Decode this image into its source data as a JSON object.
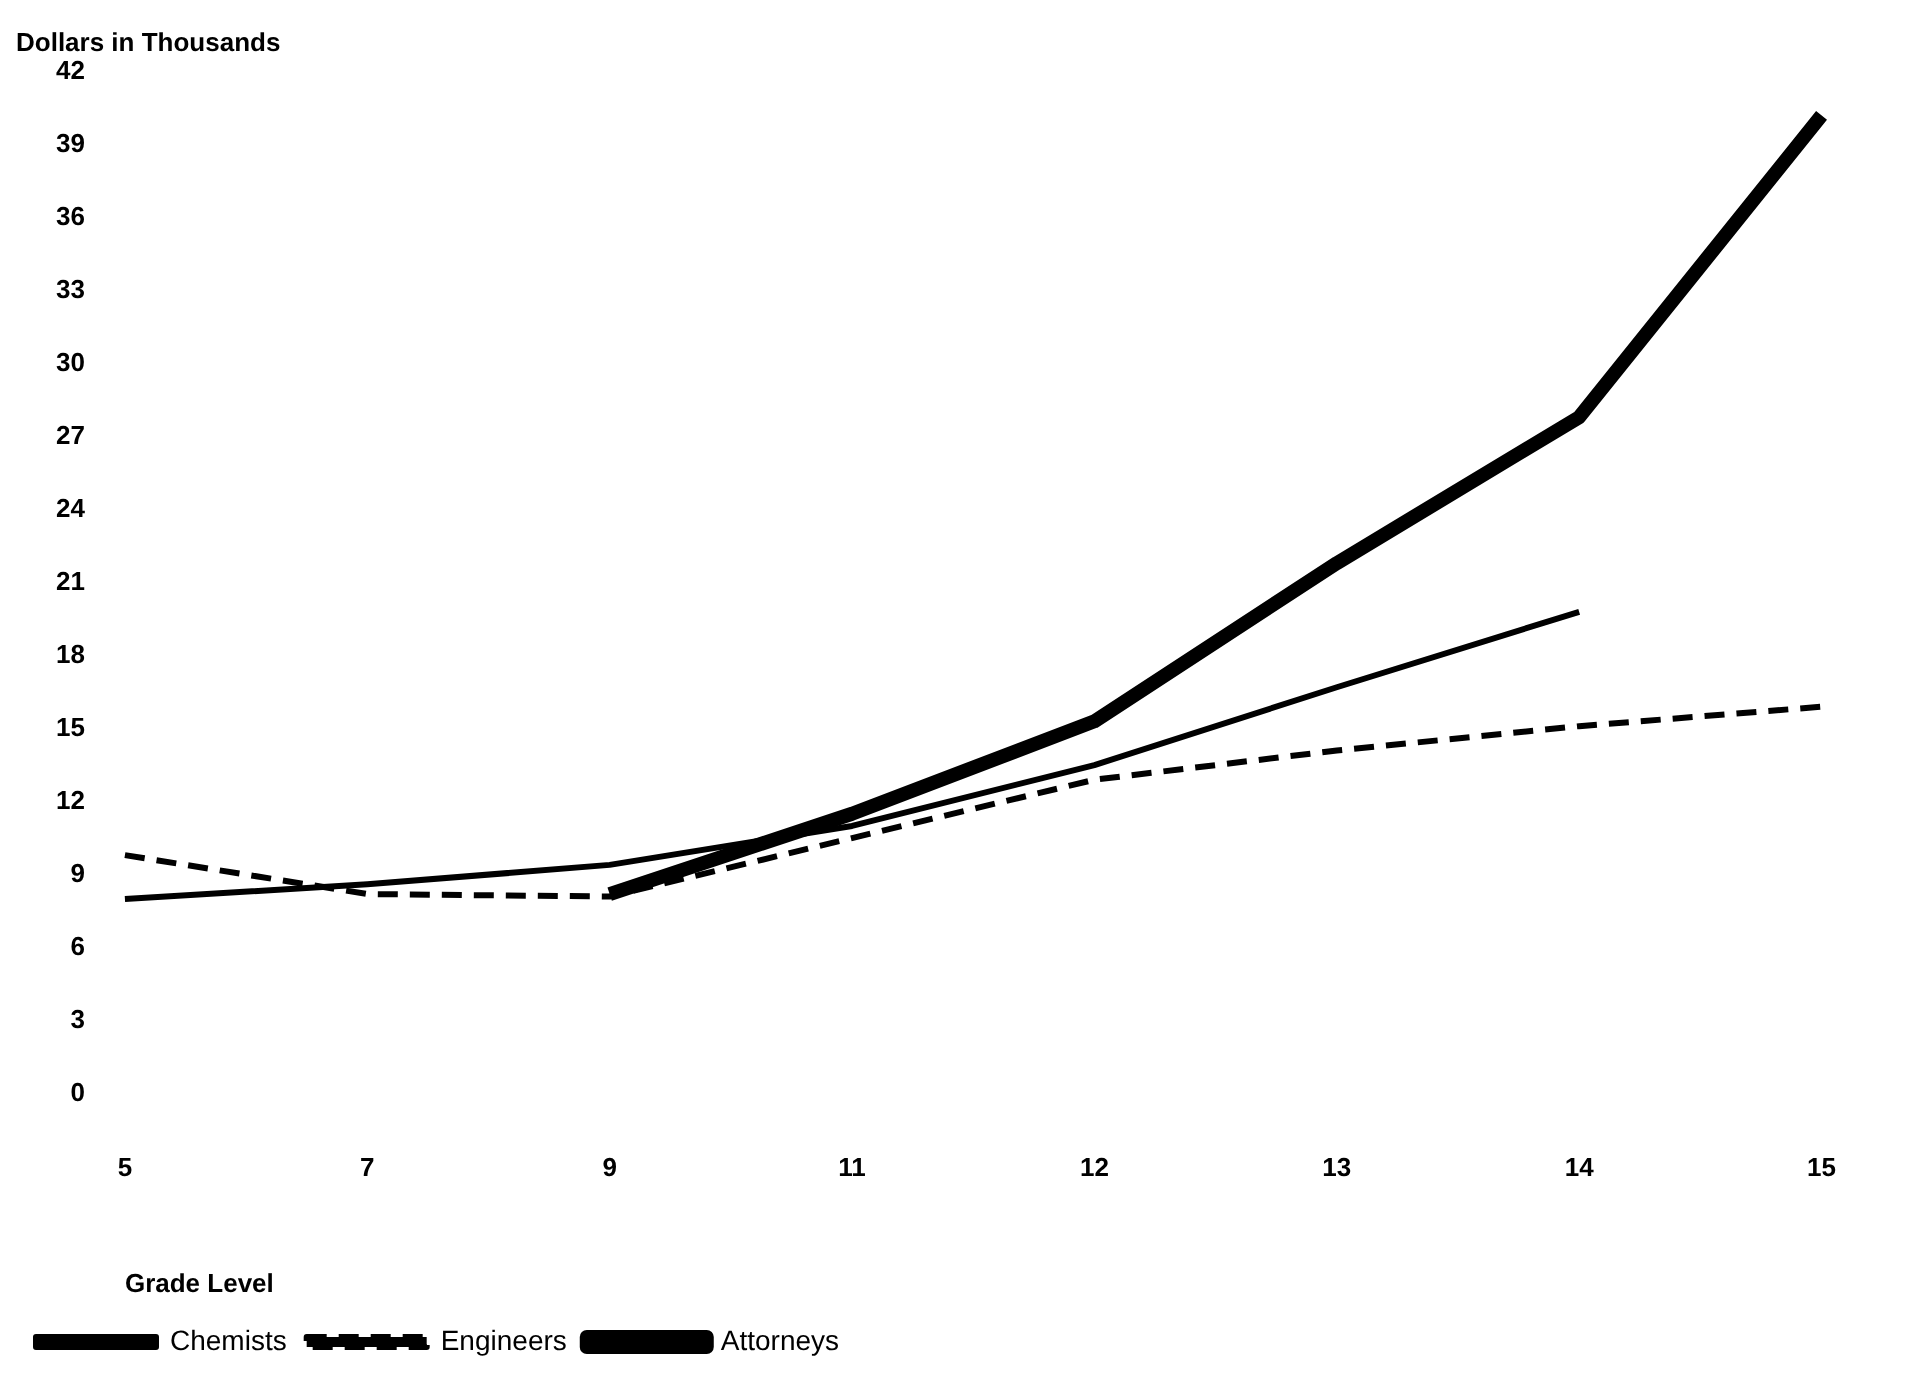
{
  "chart_data": {
    "type": "line",
    "ylabel": "Dollars in Thousands",
    "xlabel": "Grade Level",
    "categories": [
      "5",
      "7",
      "9",
      "11",
      "12",
      "13",
      "14",
      "15"
    ],
    "series": [
      {
        "name": "Chemists",
        "color": "#000000",
        "line_style": "solid",
        "values": [
          8.0,
          8.6,
          9.4,
          11.0,
          13.5,
          16.7,
          19.8,
          null
        ]
      },
      {
        "name": "Engineers",
        "color": "#000000",
        "line_style": "dashed",
        "values": [
          9.8,
          8.2,
          8.1,
          10.5,
          12.9,
          14.1,
          15.1,
          15.9
        ]
      },
      {
        "name": "Attorneys",
        "color": "#000000",
        "line_style": "solid",
        "values": [
          null,
          null,
          8.2,
          11.5,
          15.3,
          21.8,
          27.8,
          40.2
        ]
      }
    ],
    "ylim": [
      0,
      42
    ],
    "yticks": [
      0,
      3,
      6,
      9,
      12,
      15,
      18,
      21,
      24,
      27,
      30,
      33,
      36,
      39,
      42
    ],
    "grid": false,
    "legend": "bottom left",
    "marker": "none"
  }
}
